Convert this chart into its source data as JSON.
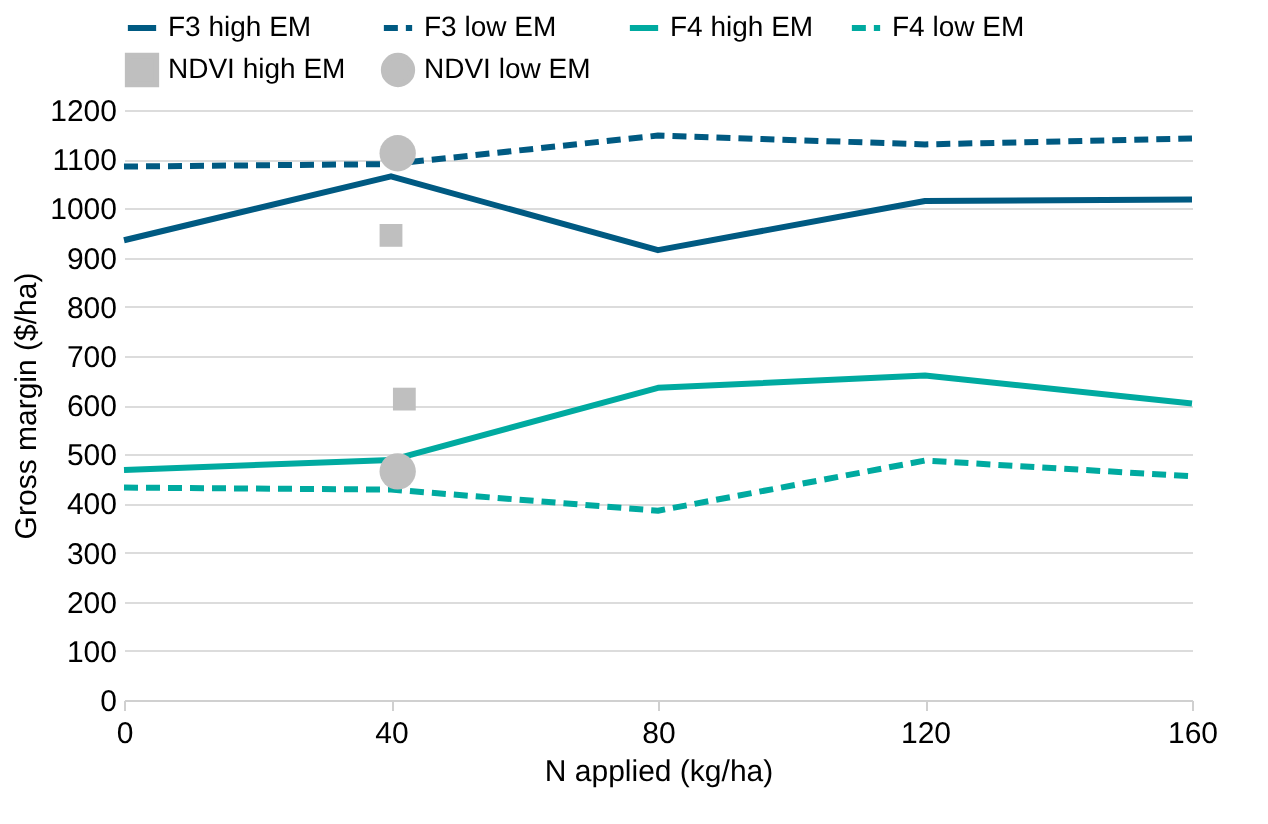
{
  "chart_data": {
    "type": "line",
    "xlabel": "N applied (kg/ha)",
    "ylabel": "Gross margin ($/ha)",
    "x": [
      0,
      40,
      80,
      120,
      160
    ],
    "series": [
      {
        "name": "F3 high EM",
        "color": "#005a82",
        "line_style": "solid",
        "values": [
          935,
          1065,
          915,
          1015,
          1018
        ]
      },
      {
        "name": "F3 low EM",
        "color": "#005a82",
        "line_style": "dashed",
        "values": [
          1085,
          1090,
          1148,
          1130,
          1142
        ]
      },
      {
        "name": "F4 high EM",
        "color": "#00aaa0",
        "line_style": "solid",
        "values": [
          468,
          488,
          635,
          660,
          603
        ]
      },
      {
        "name": "F4 low EM",
        "color": "#00aaa0",
        "line_style": "dashed",
        "values": [
          432,
          428,
          385,
          487,
          455
        ]
      },
      {
        "name": "NDVI high EM",
        "type": "scatter",
        "marker": "square",
        "color": "#bfbfbf",
        "x": [
          40,
          42
        ],
        "values": [
          945,
          612
        ]
      },
      {
        "name": "NDVI low EM",
        "type": "scatter",
        "marker": "circle",
        "color": "#bfbfbf",
        "x": [
          41,
          41
        ],
        "values": [
          1112,
          465
        ]
      }
    ],
    "xlim": [
      0,
      160
    ],
    "xticks": [
      0,
      40,
      80,
      120,
      160
    ],
    "ylim": [
      0,
      1200
    ],
    "yticks": [
      0,
      100,
      200,
      300,
      400,
      500,
      600,
      700,
      800,
      900,
      1000,
      1100,
      1200
    ],
    "grid": "y",
    "legend": "top"
  }
}
